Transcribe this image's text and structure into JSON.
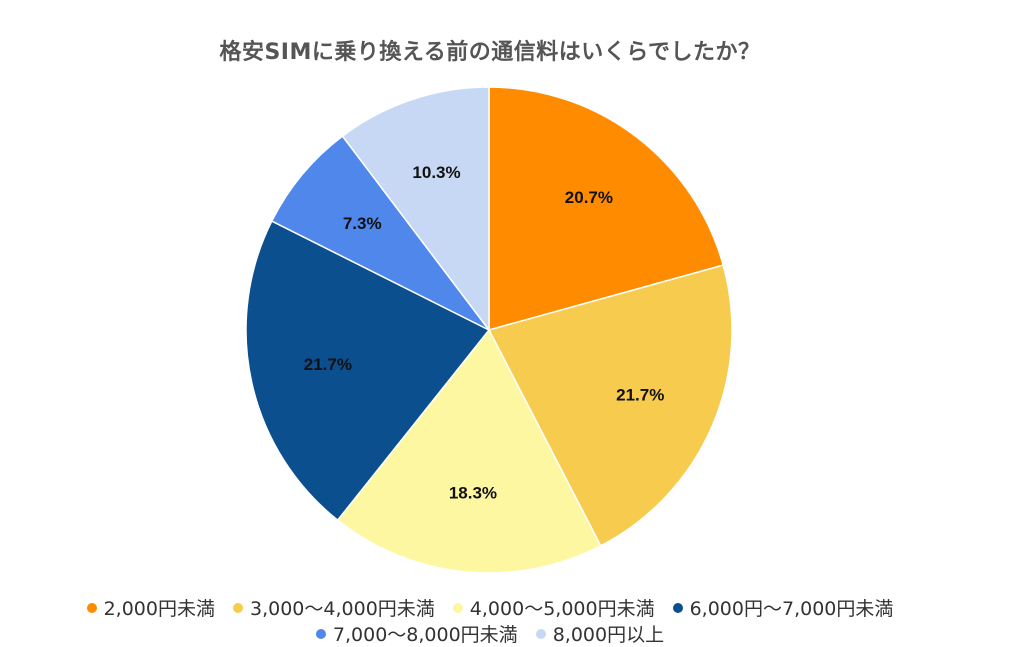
{
  "chart_data": {
    "type": "pie",
    "title": "格安SIMに乗り換える前の通信料はいくらでしたか？",
    "legend_position": "bottom",
    "slices": [
      {
        "label": "2,000円未満",
        "value": 20.7,
        "value_label": "20.7%",
        "color": "#FF8C00",
        "label_color": "#111111"
      },
      {
        "label": "3,000～4,000円未満",
        "value": 21.7,
        "value_label": "21.7%",
        "color": "#F7CB4D",
        "label_color": "#111111"
      },
      {
        "label": "4,000～5,000円未満",
        "value": 18.3,
        "value_label": "18.3%",
        "color": "#FDF7A2",
        "label_color": "#111111"
      },
      {
        "label": "6,000円～7,000円未満",
        "value": 21.7,
        "value_label": "21.7%",
        "color": "#0B4F8F",
        "label_color": "#111111"
      },
      {
        "label": "7,000～8,000円未満",
        "value": 7.3,
        "value_label": "7.3%",
        "color": "#4F87EA",
        "label_color": "#111111"
      },
      {
        "label": "8,000円以上",
        "value": 10.3,
        "value_label": "10.3%",
        "color": "#C7D8F5",
        "label_color": "#111111"
      }
    ]
  }
}
